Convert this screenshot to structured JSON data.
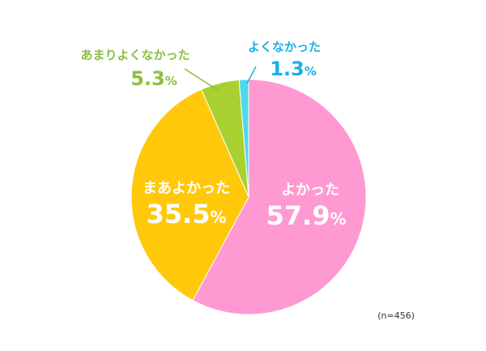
{
  "chart_data": {
    "type": "pie",
    "title": "",
    "slices": [
      {
        "label": "よかった",
        "value": 57.9,
        "display": "57.9",
        "unit": "%",
        "color": "#ff99d1"
      },
      {
        "label": "まあよかった",
        "value": 35.5,
        "display": "35.5",
        "unit": "%",
        "color": "#ffc80a"
      },
      {
        "label": "あまりよくなかった",
        "value": 5.3,
        "display": "5.3",
        "unit": "%",
        "color": "#a8d030"
      },
      {
        "label": "よくなかった",
        "value": 1.3,
        "display": "1.3",
        "unit": "%",
        "color": "#4fd9e6"
      }
    ],
    "start": "12 o'clock",
    "direction": "clockwise",
    "sample_note": "(n=456)",
    "label_colors": {
      "inside": "#ffffff",
      "あまりよくなかった": "#8cbf3f",
      "よくなかった": "#1ab0e8"
    }
  }
}
